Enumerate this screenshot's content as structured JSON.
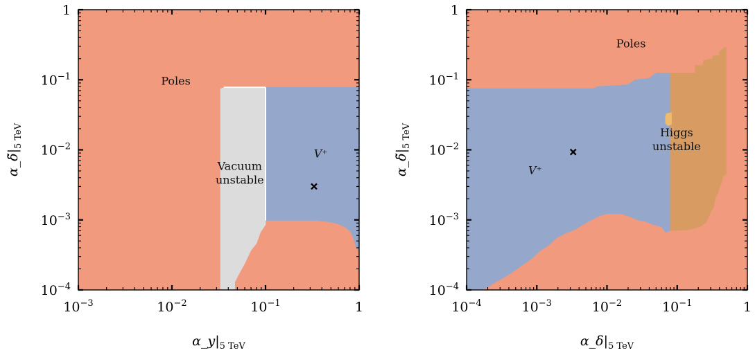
{
  "colors": {
    "poles": "#f29a7d",
    "vplus": "#95a8cb",
    "vacuum": "#dcdcdc",
    "higgs": "#d89c62",
    "higgs_spot": "#eebc6c",
    "boundary": "#ffffff",
    "axis": "#000000",
    "marker": "#000000"
  },
  "chart_data": [
    {
      "type": "heatmap",
      "log_x": true,
      "log_y": true,
      "xlim": [
        0.001,
        1
      ],
      "ylim": [
        0.0001,
        1
      ],
      "xlabel": "α_y|5 TeV",
      "ylabel": "α_δ̃|5 TeV",
      "xticks": [
        {
          "value": 0.001,
          "base": "10",
          "exp": "−3"
        },
        {
          "value": 0.01,
          "base": "10",
          "exp": "−2"
        },
        {
          "value": 0.1,
          "base": "10",
          "exp": "−1"
        },
        {
          "value": 1,
          "base": "1",
          "exp": ""
        }
      ],
      "yticks": [
        {
          "value": 0.0001,
          "base": "10",
          "exp": "−4"
        },
        {
          "value": 0.001,
          "base": "10",
          "exp": "−3"
        },
        {
          "value": 0.01,
          "base": "10",
          "exp": "−2"
        },
        {
          "value": 0.1,
          "base": "10",
          "exp": "−1"
        },
        {
          "value": 1,
          "base": "1",
          "exp": ""
        }
      ],
      "background_region": "poles",
      "regions": [
        {
          "name": "vacuum",
          "polygon": [
            [
              0.033,
              0.0001
            ],
            [
              0.033,
              0.074
            ],
            [
              0.036,
              0.078
            ],
            [
              0.1,
              0.078
            ],
            [
              0.1,
              0.00086
            ],
            [
              0.088,
              0.00066
            ],
            [
              0.08,
              0.00046
            ],
            [
              0.07,
              0.00037
            ],
            [
              0.06,
              0.00024
            ],
            [
              0.052,
              0.00017
            ],
            [
              0.047,
              0.00013
            ],
            [
              0.047,
              0.0001
            ]
          ]
        },
        {
          "name": "vplus",
          "polygon": [
            [
              0.1,
              0.00098
            ],
            [
              0.1,
              0.078
            ],
            [
              1,
              0.078
            ],
            [
              1,
              0.00042
            ],
            [
              0.96,
              0.00037
            ],
            [
              0.92,
              0.00042
            ],
            [
              0.88,
              0.00052
            ],
            [
              0.82,
              0.00066
            ],
            [
              0.74,
              0.00076
            ],
            [
              0.62,
              0.00086
            ],
            [
              0.5,
              0.00093
            ],
            [
              0.35,
              0.00098
            ]
          ]
        }
      ],
      "labels": [
        {
          "text_lines": [
            "Poles"
          ],
          "x": 0.011,
          "y": 0.085
        },
        {
          "text_lines": [
            "V⁺"
          ],
          "x": 0.39,
          "y": 0.0078,
          "italic": true
        },
        {
          "text_lines": [
            "Vacuum",
            "unstable"
          ],
          "x": 0.053,
          "y": 0.0052
        }
      ],
      "markers": [
        {
          "x": 0.33,
          "y": 0.003
        }
      ]
    },
    {
      "type": "heatmap",
      "log_x": true,
      "log_y": true,
      "xlim": [
        0.0001,
        1
      ],
      "ylim": [
        0.0001,
        1
      ],
      "xlabel": "α_δ|5 TeV",
      "ylabel": "α_δ̃|5 TeV",
      "xticks": [
        {
          "value": 0.0001,
          "base": "10",
          "exp": "−4"
        },
        {
          "value": 0.001,
          "base": "10",
          "exp": "−3"
        },
        {
          "value": 0.01,
          "base": "10",
          "exp": "−2"
        },
        {
          "value": 0.1,
          "base": "10",
          "exp": "−1"
        },
        {
          "value": 1,
          "base": "1",
          "exp": ""
        }
      ],
      "yticks": [
        {
          "value": 0.0001,
          "base": "10",
          "exp": "−4"
        },
        {
          "value": 0.001,
          "base": "10",
          "exp": "−3"
        },
        {
          "value": 0.01,
          "base": "10",
          "exp": "−2"
        },
        {
          "value": 0.1,
          "base": "10",
          "exp": "−1"
        },
        {
          "value": 1,
          "base": "1",
          "exp": ""
        }
      ],
      "background_region": "poles",
      "regions": [
        {
          "name": "vplus",
          "polygon": [
            [
              0.0001,
              0.0001
            ],
            [
              0.0001,
              0.075
            ],
            [
              0.0065,
              0.075
            ],
            [
              0.0073,
              0.08
            ],
            [
              0.02,
              0.085
            ],
            [
              0.025,
              0.1
            ],
            [
              0.04,
              0.105
            ],
            [
              0.05,
              0.125
            ],
            [
              0.08,
              0.125
            ],
            [
              0.08,
              0.0007
            ],
            [
              0.068,
              0.00066
            ],
            [
              0.06,
              0.0008
            ],
            [
              0.045,
              0.00086
            ],
            [
              0.035,
              0.00095
            ],
            [
              0.027,
              0.001
            ],
            [
              0.022,
              0.0011
            ],
            [
              0.016,
              0.00122
            ],
            [
              0.01,
              0.00122
            ],
            [
              0.008,
              0.00115
            ],
            [
              0.006,
              0.001
            ],
            [
              0.005,
              0.0009
            ],
            [
              0.0034,
              0.00072
            ],
            [
              0.0026,
              0.00065
            ],
            [
              0.0019,
              0.00055
            ],
            [
              0.0015,
              0.00044
            ],
            [
              0.0011,
              0.00036
            ],
            [
              0.00085,
              0.00028
            ],
            [
              0.0006,
              0.00022
            ],
            [
              0.00045,
              0.00018
            ],
            [
              0.00034,
              0.00015
            ],
            [
              0.00026,
              0.00013
            ],
            [
              0.0002,
              0.00011
            ],
            [
              0.00017,
              0.0001
            ]
          ]
        },
        {
          "name": "higgs",
          "polygon": [
            [
              0.08,
              0.0007
            ],
            [
              0.08,
              0.125
            ],
            [
              0.18,
              0.125
            ],
            [
              0.18,
              0.16
            ],
            [
              0.23,
              0.16
            ],
            [
              0.24,
              0.19
            ],
            [
              0.32,
              0.2
            ],
            [
              0.32,
              0.22
            ],
            [
              0.4,
              0.22
            ],
            [
              0.4,
              0.25
            ],
            [
              0.47,
              0.29
            ],
            [
              0.5,
              0.29
            ],
            [
              0.5,
              0.0045
            ],
            [
              0.45,
              0.0042
            ],
            [
              0.43,
              0.0034
            ],
            [
              0.4,
              0.0029
            ],
            [
              0.38,
              0.0024
            ],
            [
              0.35,
              0.0021
            ],
            [
              0.33,
              0.0015
            ],
            [
              0.3,
              0.0013
            ],
            [
              0.28,
              0.0011
            ],
            [
              0.26,
              0.00092
            ],
            [
              0.22,
              0.00082
            ],
            [
              0.18,
              0.00076
            ],
            [
              0.14,
              0.00072
            ]
          ]
        },
        {
          "name": "higgs_spot",
          "polygon": [
            [
              0.068,
              0.03
            ],
            [
              0.07,
              0.033
            ],
            [
              0.083,
              0.034
            ],
            [
              0.083,
              0.023
            ],
            [
              0.074,
              0.022
            ],
            [
              0.068,
              0.024
            ]
          ]
        }
      ],
      "labels": [
        {
          "text_lines": [
            "Poles"
          ],
          "x": 0.022,
          "y": 0.29
        },
        {
          "text_lines": [
            "V⁺"
          ],
          "x": 0.00095,
          "y": 0.0045,
          "italic": true
        },
        {
          "text_lines": [
            "Higgs",
            "unstable"
          ],
          "x": 0.098,
          "y": 0.0155
        }
      ],
      "markers": [
        {
          "x": 0.0033,
          "y": 0.0093
        }
      ]
    }
  ]
}
